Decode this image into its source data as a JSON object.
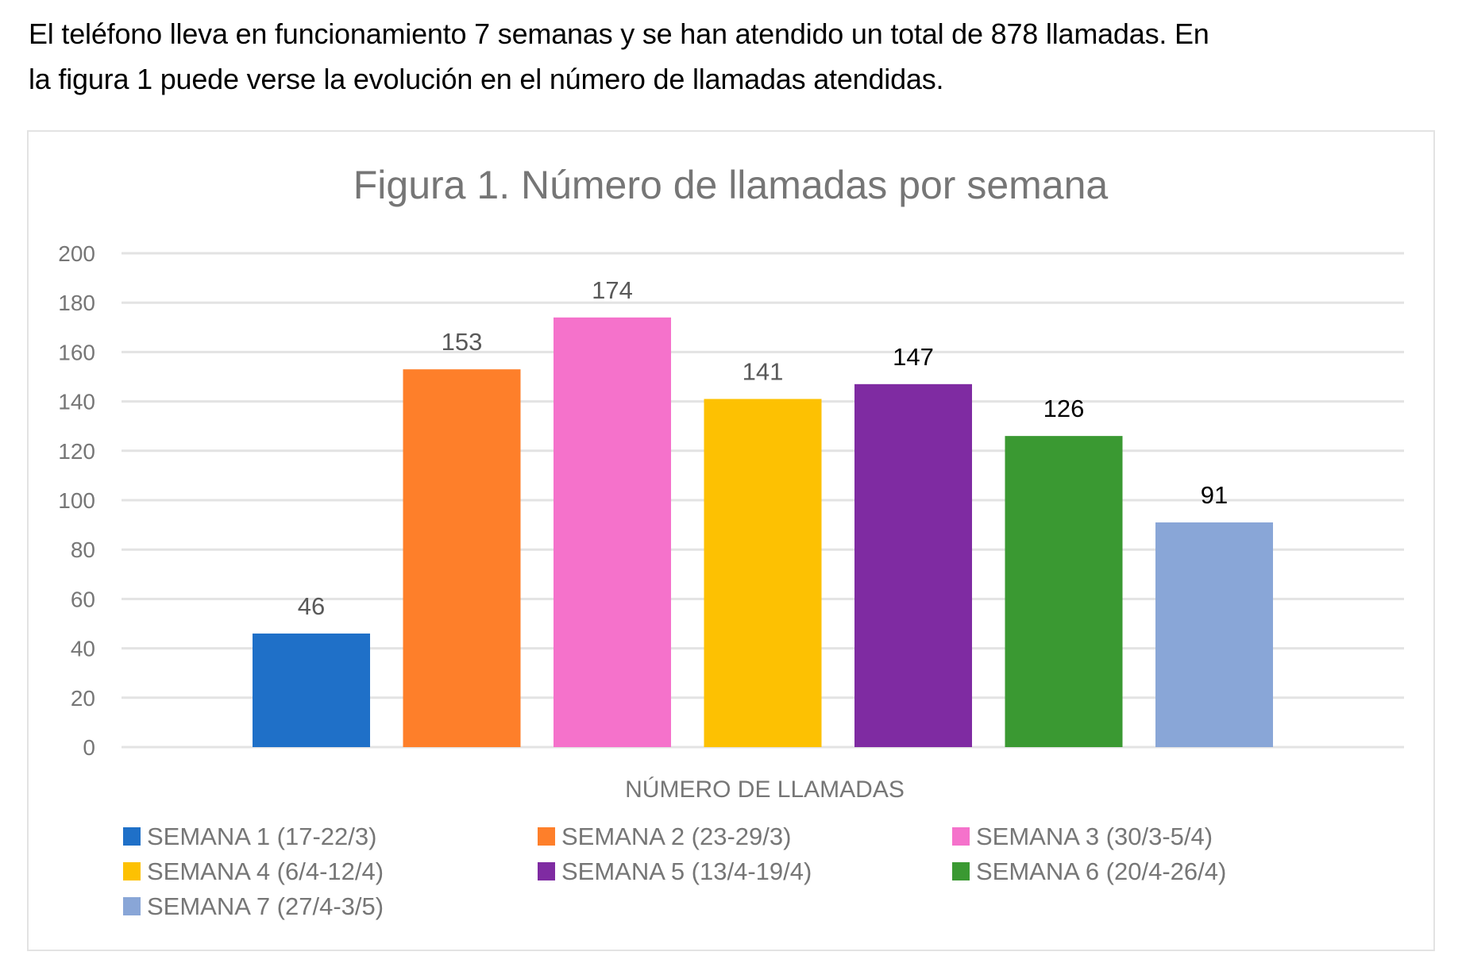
{
  "document": {
    "paragraph_line1": "El teléfono lleva en funcionamiento 7 semanas y se han atendido un total de 878 llamadas. En",
    "paragraph_line2": "la figura 1 puede verse la evolución en el número de llamadas atendidas."
  },
  "chart_data": {
    "type": "bar",
    "title": "Figura 1. Número de llamadas por semana",
    "xlabel": "NÚMERO DE LLAMADAS",
    "ylabel": "",
    "ylim": [
      0,
      200
    ],
    "yticks": [
      0,
      20,
      40,
      60,
      80,
      100,
      120,
      140,
      160,
      180,
      200
    ],
    "grid": true,
    "legend_position": "bottom",
    "categories": [
      "NÚMERO DE LLAMADAS"
    ],
    "series": [
      {
        "name": "SEMANA 1 (17-22/3)",
        "values": [
          46
        ],
        "color": "#1F70C8",
        "label_color": "#595959"
      },
      {
        "name": "SEMANA 2 (23-29/3)",
        "values": [
          153
        ],
        "color": "#FE7F2A",
        "label_color": "#595959"
      },
      {
        "name": "SEMANA 3 (30/3-5/4)",
        "values": [
          174
        ],
        "color": "#F572CB",
        "label_color": "#595959"
      },
      {
        "name": "SEMANA 4 (6/4-12/4)",
        "values": [
          141
        ],
        "color": "#FDC102",
        "label_color": "#595959"
      },
      {
        "name": "SEMANA 5 (13/4-19/4)",
        "values": [
          147
        ],
        "color": "#7F2BA2",
        "label_color": "#000000"
      },
      {
        "name": "SEMANA 6 (20/4-26/4)",
        "values": [
          126
        ],
        "color": "#3A9932",
        "label_color": "#000000"
      },
      {
        "name": "SEMANA 7 (27/4-3/5)",
        "values": [
          91
        ],
        "color": "#89A6D7",
        "label_color": "#000000"
      }
    ]
  }
}
